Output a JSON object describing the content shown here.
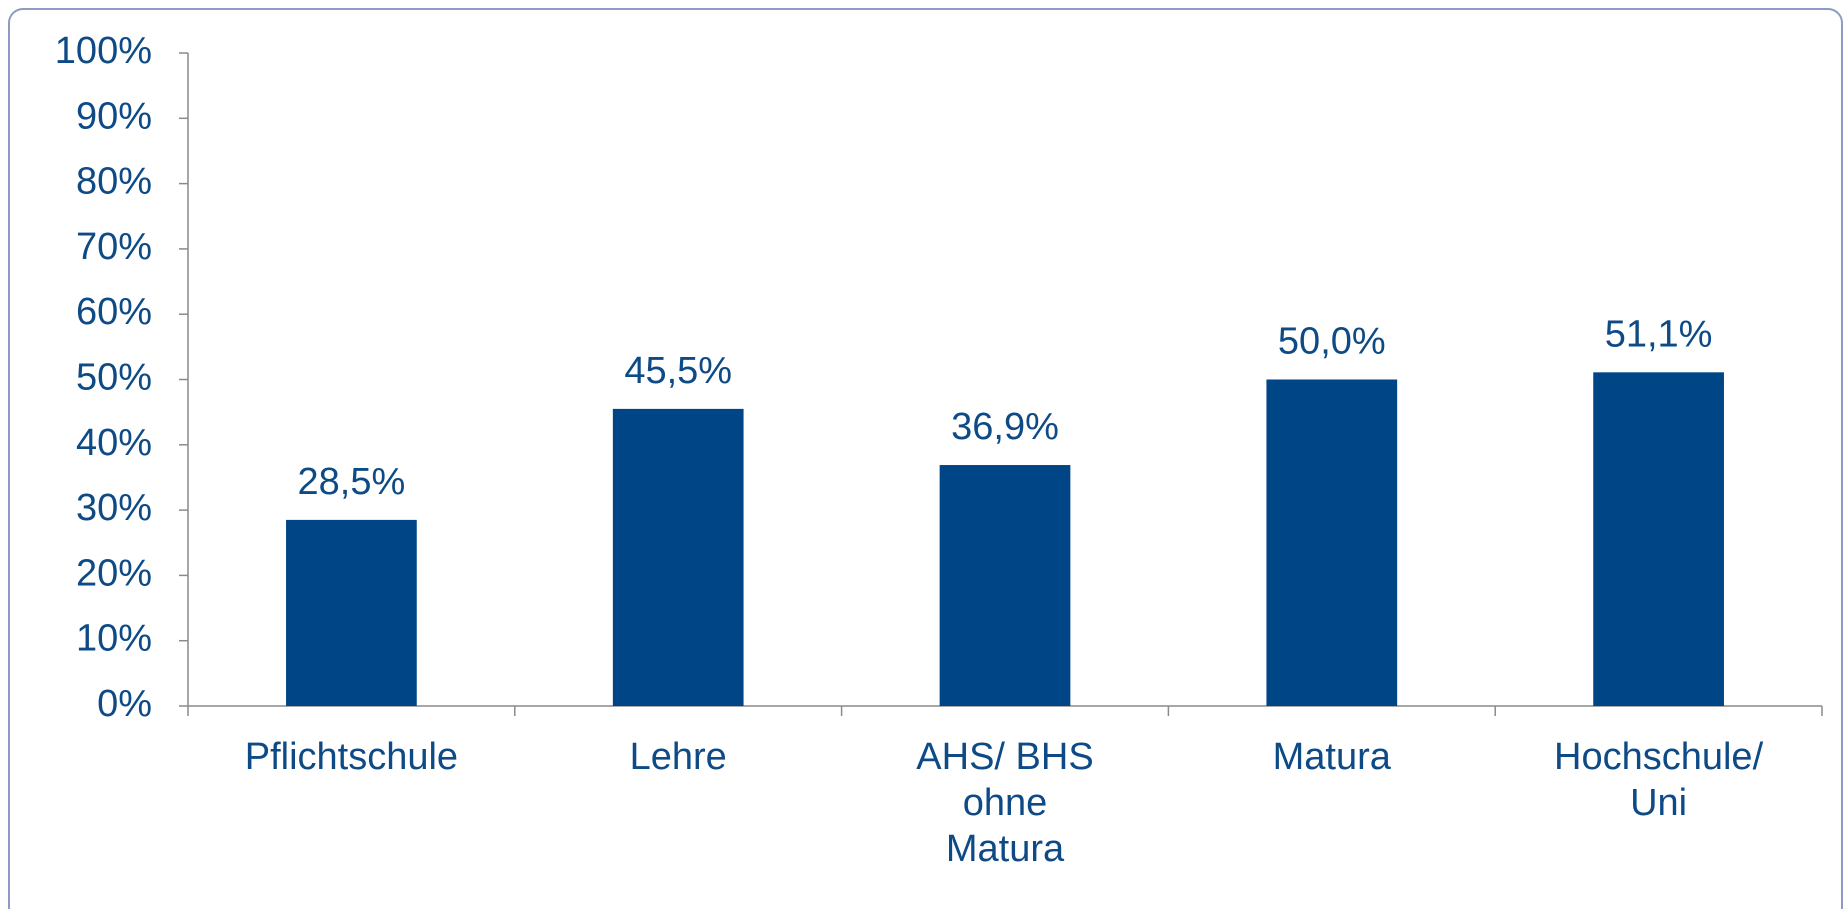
{
  "chart_data": {
    "type": "bar",
    "categories": [
      "Pflichtschule",
      "Lehre",
      "AHS/ BHS\nohne\nMatura",
      "Matura",
      "Hochschule/\nUni"
    ],
    "values": [
      28.5,
      45.5,
      36.9,
      50.0,
      51.1
    ],
    "value_labels": [
      "28,5%",
      "45,5%",
      "36,9%",
      "50,0%",
      "51,1%"
    ],
    "color": "#004586",
    "ylim": [
      0,
      100
    ],
    "yticks": [
      {
        "value": 0,
        "label": "0%"
      },
      {
        "value": 10,
        "label": "10%"
      },
      {
        "value": 20,
        "label": "20%"
      },
      {
        "value": 30,
        "label": "30%"
      },
      {
        "value": 40,
        "label": "40%"
      },
      {
        "value": 50,
        "label": "50%"
      },
      {
        "value": 60,
        "label": "60%"
      },
      {
        "value": 70,
        "label": "70%"
      },
      {
        "value": 80,
        "label": "80%"
      },
      {
        "value": 90,
        "label": "90%"
      },
      {
        "value": 100,
        "label": "100%"
      }
    ],
    "grid": false
  }
}
